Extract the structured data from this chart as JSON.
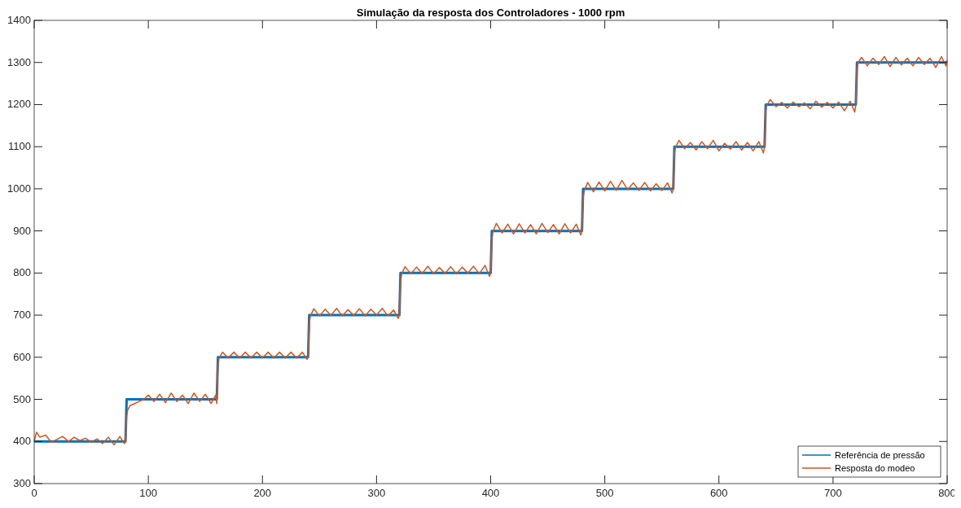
{
  "chart_data": {
    "type": "line",
    "title": "Simulação da resposta dos Controladores - 1000 rpm",
    "xlim": [
      0,
      800
    ],
    "xticks": [
      0,
      100,
      200,
      300,
      400,
      500,
      600,
      700,
      800
    ],
    "ylim": [
      300,
      1400
    ],
    "yticks": [
      300,
      400,
      500,
      600,
      700,
      800,
      900,
      1000,
      1100,
      1200,
      1300,
      1400
    ],
    "grid": false,
    "legend": "bottom right",
    "line_style": "solid",
    "series": [
      {
        "name": "Referência de pressão",
        "color": "#0072bd",
        "x": [
          0,
          80,
          81,
          160,
          161,
          240,
          241,
          320,
          321,
          400,
          401,
          480,
          481,
          560,
          561,
          640,
          641,
          720,
          721,
          800
        ],
        "values": [
          400,
          400,
          500,
          500,
          600,
          600,
          700,
          700,
          800,
          800,
          900,
          900,
          1000,
          1000,
          1100,
          1100,
          1200,
          1200,
          1300,
          1300
        ]
      },
      {
        "name": "Resposta do modeo",
        "color": "#d95319",
        "x": [
          0,
          2,
          5,
          10,
          15,
          20,
          25,
          30,
          35,
          40,
          45,
          50,
          55,
          60,
          65,
          70,
          75,
          79,
          80,
          81,
          82,
          84,
          88,
          92,
          96,
          100,
          105,
          110,
          115,
          120,
          125,
          130,
          135,
          140,
          145,
          150,
          155,
          159,
          160,
          161,
          162,
          165,
          170,
          175,
          180,
          185,
          190,
          195,
          200,
          205,
          210,
          215,
          220,
          225,
          230,
          235,
          239,
          240,
          241,
          242,
          245,
          250,
          255,
          260,
          265,
          270,
          275,
          280,
          285,
          290,
          295,
          300,
          305,
          310,
          315,
          319,
          320,
          321,
          322,
          325,
          330,
          335,
          340,
          345,
          350,
          355,
          360,
          365,
          370,
          375,
          380,
          385,
          390,
          395,
          399,
          400,
          401,
          402,
          405,
          410,
          415,
          420,
          425,
          430,
          435,
          440,
          445,
          450,
          455,
          460,
          465,
          470,
          475,
          479,
          480,
          481,
          482,
          485,
          490,
          495,
          500,
          505,
          510,
          515,
          520,
          525,
          530,
          535,
          540,
          545,
          550,
          555,
          559,
          560,
          561,
          562,
          565,
          570,
          575,
          580,
          585,
          590,
          595,
          600,
          605,
          610,
          615,
          620,
          625,
          630,
          635,
          639,
          640,
          641,
          642,
          645,
          650,
          655,
          660,
          665,
          670,
          675,
          680,
          685,
          690,
          695,
          700,
          705,
          710,
          715,
          719,
          720,
          721,
          722,
          725,
          730,
          735,
          740,
          745,
          750,
          755,
          760,
          765,
          770,
          775,
          780,
          785,
          790,
          795,
          799,
          800
        ],
        "values": [
          400,
          422,
          410,
          415,
          398,
          405,
          412,
          400,
          410,
          402,
          408,
          398,
          406,
          395,
          410,
          392,
          412,
          395,
          400,
          460,
          475,
          485,
          490,
          495,
          500,
          510,
          495,
          512,
          492,
          515,
          495,
          510,
          490,
          515,
          495,
          512,
          490,
          510,
          490,
          580,
          598,
          612,
          598,
          612,
          598,
          612,
          598,
          612,
          598,
          612,
          598,
          612,
          598,
          612,
          598,
          612,
          595,
          600,
          680,
          698,
          715,
          698,
          714,
          699,
          716,
          698,
          713,
          699,
          715,
          698,
          714,
          700,
          716,
          698,
          712,
          692,
          700,
          780,
          798,
          815,
          798,
          814,
          799,
          816,
          798,
          813,
          799,
          815,
          798,
          814,
          800,
          816,
          798,
          818,
          792,
          800,
          880,
          898,
          918,
          895,
          916,
          893,
          917,
          895,
          915,
          893,
          918,
          896,
          915,
          893,
          917,
          895,
          916,
          890,
          900,
          980,
          995,
          1015,
          993,
          1016,
          995,
          1018,
          996,
          1020,
          998,
          1014,
          996,
          1015,
          995,
          1012,
          996,
          1014,
          990,
          1000,
          1085,
          1098,
          1115,
          1095,
          1110,
          1092,
          1112,
          1095,
          1115,
          1090,
          1108,
          1094,
          1112,
          1092,
          1110,
          1090,
          1112,
          1085,
          1100,
          1185,
          1198,
          1212,
          1195,
          1205,
          1192,
          1206,
          1195,
          1204,
          1190,
          1208,
          1194,
          1205,
          1192,
          1206,
          1185,
          1208,
          1182,
          1200,
          1285,
          1300,
          1312,
          1292,
          1310,
          1295,
          1314,
          1290,
          1312,
          1294,
          1310,
          1292,
          1312,
          1295,
          1310,
          1288,
          1314,
          1292,
          1305
        ]
      }
    ]
  }
}
